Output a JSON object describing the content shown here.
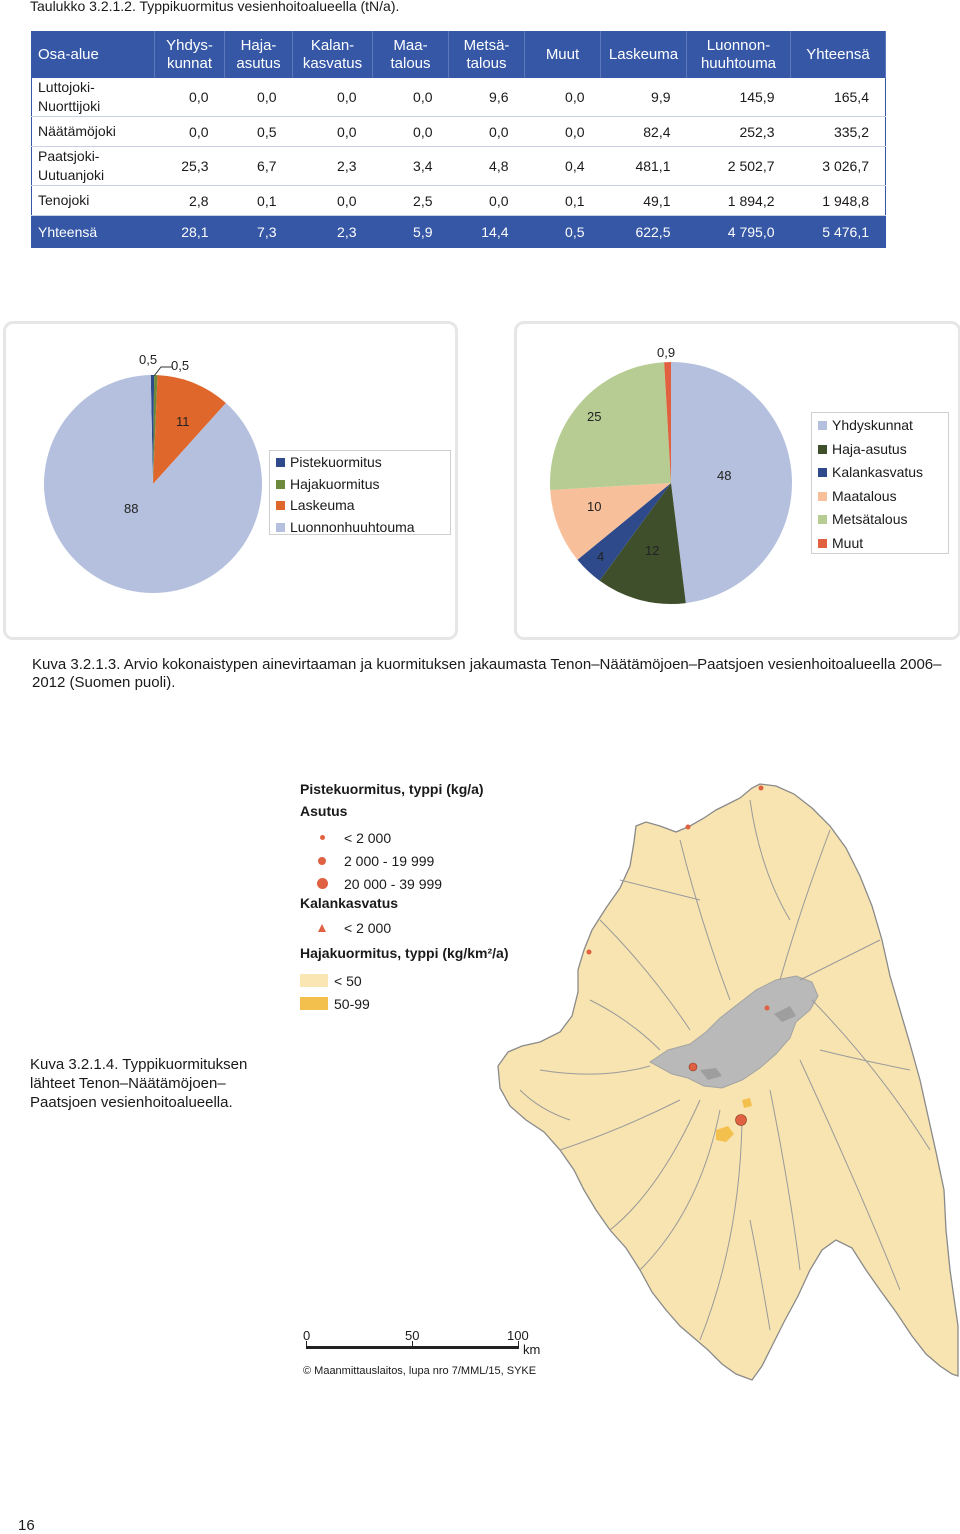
{
  "table": {
    "caption": "Taulukko 3.2.1.2. Typpikuormitus vesienhoitoalueella (tN/a).",
    "headers": [
      {
        "l1": "Osa-alue",
        "l2": ""
      },
      {
        "l1": "Yhdys-",
        "l2": "kunnat"
      },
      {
        "l1": "Haja-",
        "l2": "asutus"
      },
      {
        "l1": "Kalan-",
        "l2": "kasvatus"
      },
      {
        "l1": "Maa-",
        "l2": "talous"
      },
      {
        "l1": "Metsä-",
        "l2": "talous"
      },
      {
        "l1": "Muut",
        "l2": ""
      },
      {
        "l1": "Laskeuma",
        "l2": ""
      },
      {
        "l1": "Luonnon-",
        "l2": "huuhtouma"
      },
      {
        "l1": "Yhteensä",
        "l2": ""
      }
    ],
    "rows": [
      {
        "name1": "Luttojoki-",
        "name2": "Nuorttijoki",
        "values": [
          "0,0",
          "0,0",
          "0,0",
          "0,0",
          "9,6",
          "0,0",
          "9,9",
          "145,9",
          "165,4"
        ]
      },
      {
        "name1": "Näätämöjoki",
        "name2": "",
        "values": [
          "0,0",
          "0,5",
          "0,0",
          "0,0",
          "0,0",
          "0,0",
          "82,4",
          "252,3",
          "335,2"
        ]
      },
      {
        "name1": "Paatsjoki-",
        "name2": "Uutuanjoki",
        "values": [
          "25,3",
          "6,7",
          "2,3",
          "3,4",
          "4,8",
          "0,4",
          "481,1",
          "2 502,7",
          "3 026,7"
        ]
      },
      {
        "name1": "Tenojoki",
        "name2": "",
        "values": [
          "2,8",
          "0,1",
          "0,0",
          "2,5",
          "0,0",
          "0,1",
          "49,1",
          "1 894,2",
          "1 948,8"
        ]
      }
    ],
    "total": {
      "name": "Yhteensä",
      "values": [
        "28,1",
        "7,3",
        "2,3",
        "5,9",
        "14,4",
        "0,5",
        "622,5",
        "4 795,0",
        "5 476,1"
      ]
    }
  },
  "chart_data": [
    {
      "type": "pie",
      "series": [
        {
          "name": "Pistekuormitus",
          "value": 0.5,
          "label": "0,5",
          "color": "#2f4a8a"
        },
        {
          "name": "Hajakuormitus",
          "value": 0.5,
          "label": "0,5",
          "color": "#6d8a3c"
        },
        {
          "name": "Laskeuma",
          "value": 11,
          "label": "11",
          "color": "#e0672c"
        },
        {
          "name": "Luonnonhuuhtouma",
          "value": 88,
          "label": "88",
          "color": "#b4c0de"
        }
      ],
      "legend_position": "right"
    },
    {
      "type": "pie",
      "series": [
        {
          "name": "Yhdyskunnat",
          "value": 48,
          "label": "48",
          "color": "#b4c0de"
        },
        {
          "name": "Haja-asutus",
          "value": 12,
          "label": "12",
          "color": "#3f4f2b"
        },
        {
          "name": "Kalankasvatus",
          "value": 4,
          "label": "4",
          "color": "#2f4a8a"
        },
        {
          "name": "Maatalous",
          "value": 10,
          "label": "10",
          "color": "#f8c09a"
        },
        {
          "name": "Metsätalous",
          "value": 25,
          "label": "25",
          "color": "#b7cc92"
        },
        {
          "name": "Muut",
          "value": 0.9,
          "label": "0,9",
          "color": "#e0603f"
        }
      ],
      "legend_position": "right"
    }
  ],
  "figure1_caption": "Kuva 3.2.1.3. Arvio kokonaistypen ainevirtaaman ja kuormituksen jakaumasta Tenon–Näätämöjoen–Paatsjoen vesienhoitoalueella 2006–2012 (Suomen puoli).",
  "map": {
    "legend": {
      "title": "Pistekuormitus, typpi (kg/a)",
      "asutus_label": "Asutus",
      "asutus_classes": [
        "< 2 000",
        "2 000 - 19 999",
        "20 000 - 39 999"
      ],
      "kalankasvatus_label": "Kalankasvatus",
      "kalankasvatus_class": "< 2 000",
      "diffuse_title": "Hajakuormitus, typpi (kg/km²/a)",
      "diffuse_classes": [
        "< 50",
        "50-99"
      ],
      "point_color": "#e06141",
      "diffuse_colors": [
        "#f9e6b3",
        "#f4c04d"
      ]
    },
    "scale": {
      "ticks": [
        "0",
        "50",
        "100"
      ],
      "unit": "km"
    },
    "copyright": "© Maanmittauslaitos, lupa nro 7/MML/15, SYKE"
  },
  "figure2_caption": "Kuva 3.2.1.4. Typpikuormituksen lähteet Tenon–Näätämöjoen–Paatsjoen vesienhoitoalueella.",
  "page_number": "16"
}
